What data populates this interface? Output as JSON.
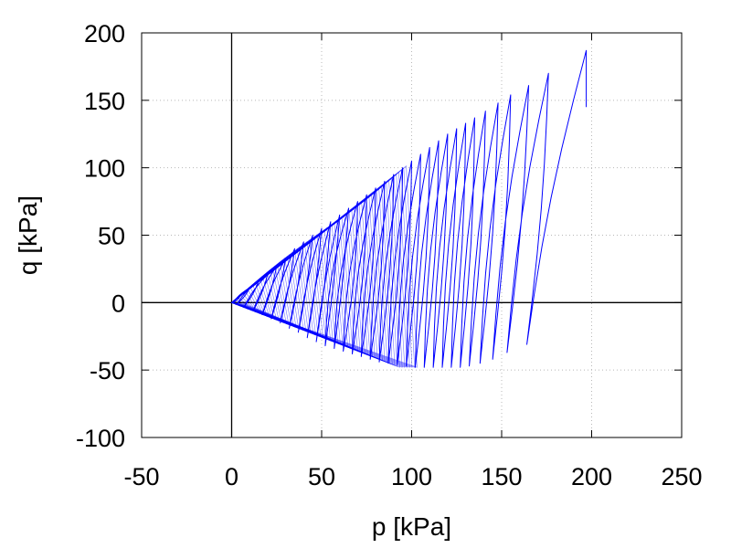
{
  "chart_data": {
    "type": "line",
    "title": "",
    "xlabel": "p [kPa]",
    "ylabel": "q [kPa]",
    "xlim": [
      -50,
      250
    ],
    "ylim": [
      -100,
      200
    ],
    "x_ticks": [
      -50,
      0,
      50,
      100,
      150,
      200,
      250
    ],
    "y_ticks": [
      -100,
      -50,
      0,
      50,
      100,
      150,
      200
    ],
    "x_tick_labels": [
      "-50",
      "0",
      "50",
      "100",
      "150",
      "200",
      "250"
    ],
    "y_tick_labels": [
      "-100",
      "-50",
      "0",
      "50",
      "100",
      "150",
      "200"
    ],
    "grid": true,
    "legend": "none",
    "zero_axes": true,
    "series": [
      {
        "color": "#0000ff",
        "description_points": {
          "start": [
            197,
            145
          ],
          "peak": [
            197,
            187
          ],
          "cycle_peaks": [
            [
              197,
              187
            ],
            [
              176,
              170
            ],
            [
              165,
              161
            ],
            [
              155,
              154
            ],
            [
              148,
              148
            ],
            [
              141,
              142
            ],
            [
              135,
              137
            ],
            [
              130,
              133
            ],
            [
              125,
              129
            ],
            [
              120,
              125
            ],
            [
              115,
              120
            ],
            [
              110,
              115
            ],
            [
              105,
              110
            ],
            [
              100,
              105
            ],
            [
              95,
              100
            ],
            [
              90,
              95
            ],
            [
              85,
              90
            ],
            [
              80,
              85
            ],
            [
              75,
              80
            ],
            [
              70,
              75
            ],
            [
              65,
              70
            ],
            [
              60,
              65
            ],
            [
              55,
              60
            ],
            [
              50,
              55
            ],
            [
              45,
              50
            ],
            [
              40,
              45
            ],
            [
              35,
              40
            ],
            [
              30,
              33
            ],
            [
              25,
              27
            ],
            [
              20,
              21
            ],
            [
              15,
              16
            ],
            [
              10,
              11
            ],
            [
              5,
              6
            ],
            [
              2,
              2
            ]
          ],
          "cycle_troughs": [
            [
              164,
              -31
            ],
            [
              153,
              -37
            ],
            [
              145,
              -42
            ],
            [
              138,
              -45
            ],
            [
              132,
              -47
            ],
            [
              127,
              -48
            ],
            [
              122,
              -48
            ],
            [
              117,
              -48
            ],
            [
              112,
              -48
            ],
            [
              107,
              -48
            ],
            [
              102,
              -48
            ],
            [
              97,
              -47
            ],
            [
              92,
              -46
            ],
            [
              87,
              -45
            ],
            [
              82,
              -44
            ],
            [
              77,
              -42
            ],
            [
              72,
              -40
            ],
            [
              67,
              -38
            ],
            [
              62,
              -36
            ],
            [
              57,
              -34
            ],
            [
              52,
              -32
            ],
            [
              47,
              -29
            ],
            [
              42,
              -26
            ],
            [
              37,
              -22
            ],
            [
              32,
              -19
            ],
            [
              27,
              -15
            ],
            [
              22,
              -12
            ],
            [
              17,
              -9
            ],
            [
              12,
              -6
            ],
            [
              7,
              -3
            ],
            [
              3,
              -1
            ],
            [
              1,
              0
            ]
          ],
          "end": [
            0,
            0
          ]
        }
      }
    ]
  }
}
